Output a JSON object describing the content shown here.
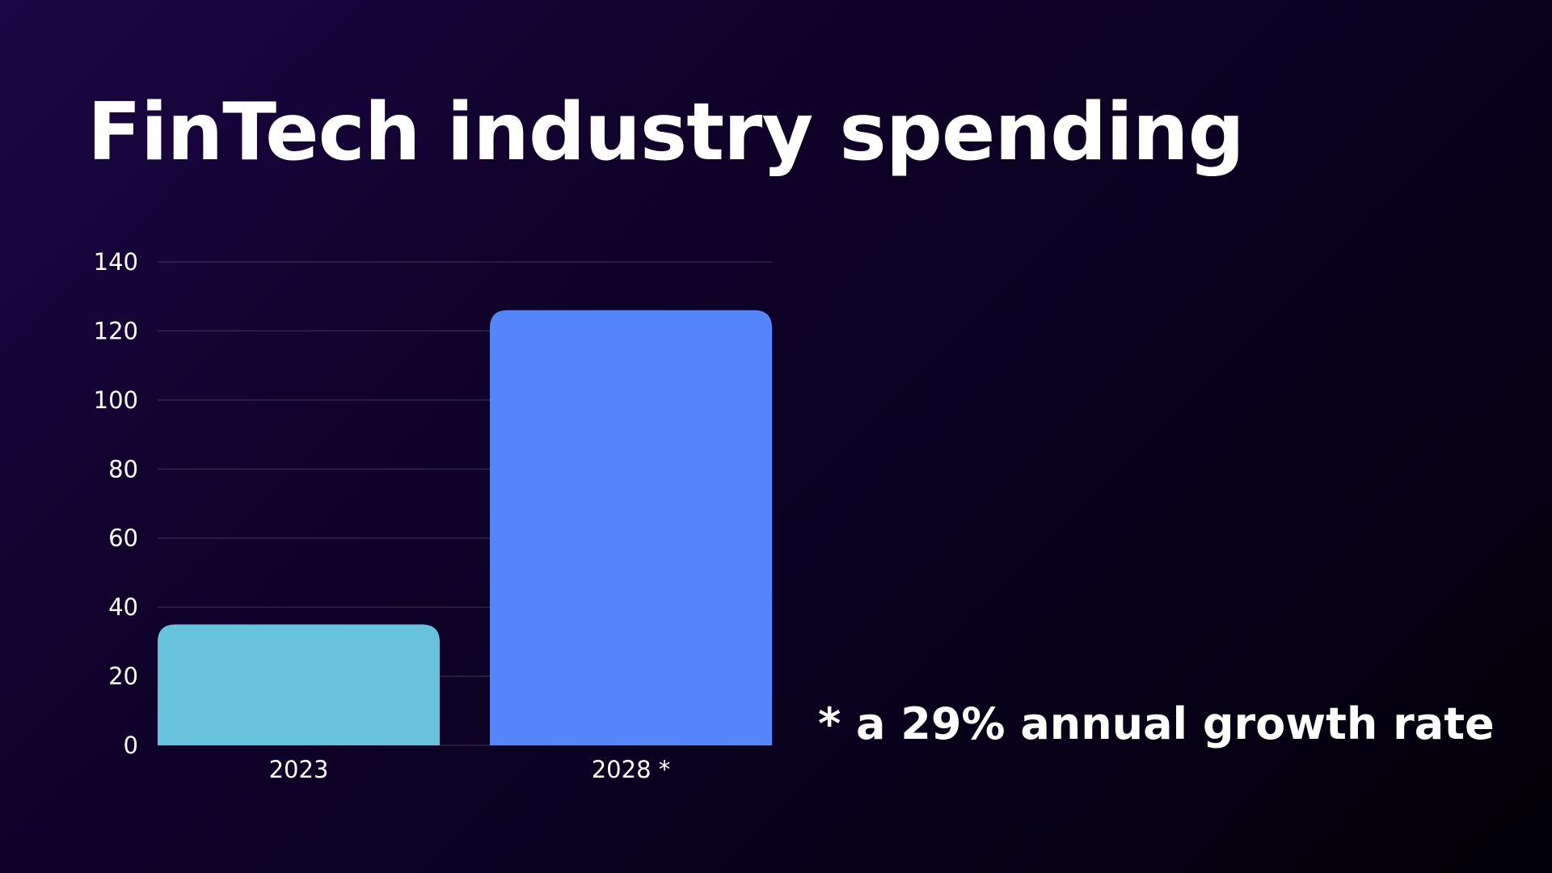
{
  "title": "FinTech industry spending",
  "footnote": "* a 29% annual growth rate",
  "colors": {
    "bar_2023": "#67c3db",
    "bar_2028": "#5585fb",
    "text": "#ffffff"
  },
  "chart_data": {
    "type": "bar",
    "title": "FinTech industry spending",
    "xlabel": "",
    "ylabel": "",
    "categories": [
      "2023",
      "2028 *"
    ],
    "values": [
      35,
      126
    ],
    "ylim": [
      0,
      140
    ],
    "yticks": [
      0,
      20,
      40,
      60,
      80,
      100,
      120,
      140
    ],
    "grid": true,
    "legend": "none"
  }
}
